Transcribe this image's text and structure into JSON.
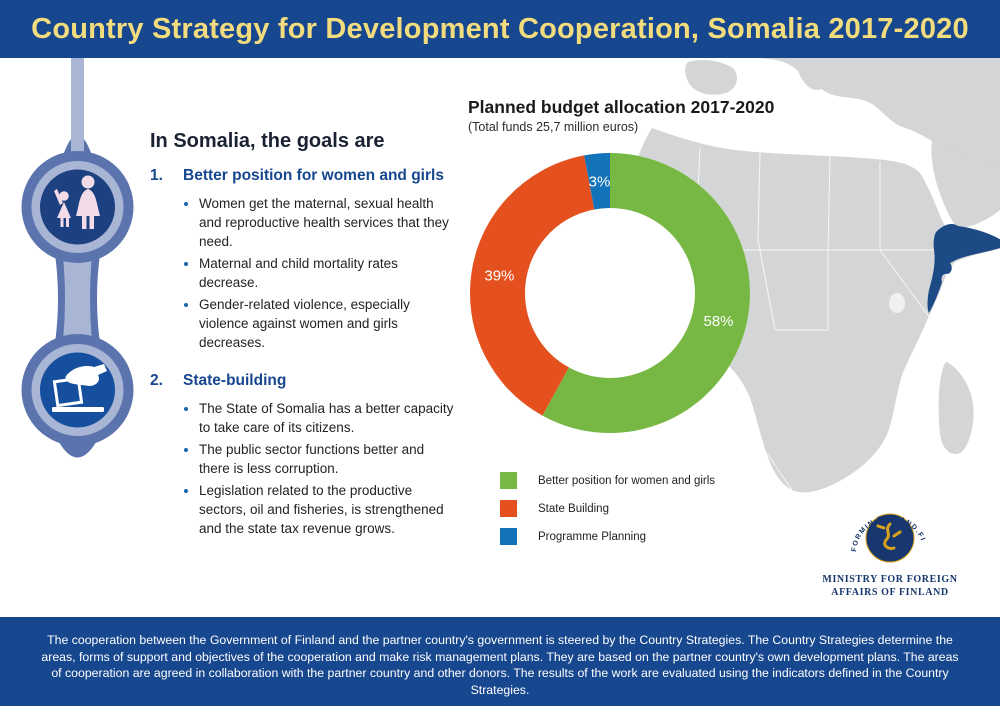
{
  "header": {
    "title": "Country Strategy for Development Cooperation, Somalia 2017-2020"
  },
  "goals": {
    "heading": "In Somalia, the goals are",
    "sections": [
      {
        "number": "1.",
        "title": "Better position for women and girls",
        "bullets": [
          "Women get the maternal, sexual health and reproductive health services that they need.",
          "Maternal and child mortality rates decrease.",
          "Gender-related violence, especially violence against women and girls decreases."
        ]
      },
      {
        "number": "2.",
        "title": "State-building",
        "bullets": [
          "The State of Somalia has a better capacity to take care of its citizens.",
          "The public sector functions better and there is less corruption.",
          "Legislation related to the productive sectors, oil and fisheries, is strengthened and the state tax revenue grows."
        ]
      }
    ]
  },
  "chart_data": {
    "type": "pie",
    "donut": true,
    "title": "Planned budget allocation 2017-2020",
    "subtitle": "(Total funds 25,7 million euros)",
    "total_funds": "25,7 million euros",
    "labels": [
      "Better position for women and girls",
      "State Building",
      "Programme Planning"
    ],
    "values": [
      58,
      39,
      3
    ],
    "unit": "%",
    "data_labels": [
      "58%",
      "39%",
      "3%"
    ],
    "colors": [
      "#76b843",
      "#e4511e",
      "#1273b9"
    ],
    "legend_position": "bottom-left"
  },
  "map": {
    "highlighted_country": "Somalia",
    "land_color": "#d3d5d7",
    "highlight_color": "#1c4a85"
  },
  "logo": {
    "arc_text": "FORMIN.FINLAND.FI",
    "line1": "MINISTRY FOR FOREIGN",
    "line2": "AFFAIRS OF FINLAND"
  },
  "footer": {
    "text": "The cooperation between the Government of Finland and the partner country's government is steered by the Country Strategies. The Country Strategies determine the areas, forms of support and objectives of the cooperation and make risk management plans. They are based on the partner country's own development plans. The areas of cooperation are agreed in collaboration with the partner country and other donors. The results of the work are evaluated using the indicators defined in the Country Strategies."
  },
  "colors": {
    "header_bg": "#17478e",
    "title_yellow": "#f2dc7d",
    "section_blue": "#17478e",
    "chain_outer": "#5b74ae",
    "chain_inner": "#a9b5d5",
    "icon_disc_top": "#1d4180",
    "icon_disc_bottom": "#164f9e"
  }
}
